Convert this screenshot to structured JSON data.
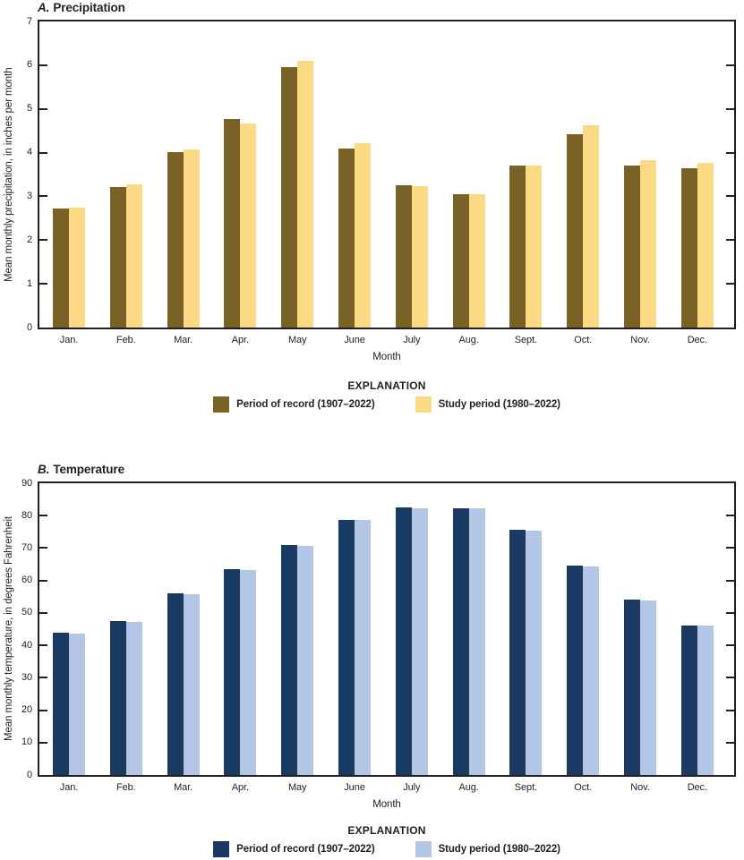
{
  "page": {
    "background": "#ffffff",
    "text_color": "#231f20"
  },
  "chart_data": [
    {
      "type": "bar",
      "panel_letter": "A.",
      "panel_title": "Precipitation",
      "title": "A. Precipitation",
      "categories": [
        "Jan.",
        "Feb.",
        "Mar.",
        "Apr.",
        "May",
        "June",
        "July",
        "Aug.",
        "Sept.",
        "Oct.",
        "Nov.",
        "Dec."
      ],
      "series": [
        {
          "name": "Period of record (1907–2022)",
          "color": "#7a6227",
          "values": [
            2.72,
            3.22,
            4.02,
            4.76,
            5.96,
            4.1,
            3.26,
            3.06,
            3.71,
            4.42,
            3.7,
            3.64
          ]
        },
        {
          "name": "Study period (1980–2022)",
          "color": "#fbd985",
          "values": [
            2.75,
            3.27,
            4.08,
            4.66,
            6.09,
            4.21,
            3.24,
            3.04,
            3.71,
            4.63,
            3.82,
            3.77
          ]
        }
      ],
      "xlabel": "Month",
      "ylabel": "Mean monthly precipitation, in inches per month",
      "ylim": [
        0,
        7
      ],
      "ytick_step": 1,
      "grid": false,
      "legend_heading": "EXPLANATION",
      "legend_position": "bottom-center"
    },
    {
      "type": "bar",
      "panel_letter": "B.",
      "panel_title": "Temperature",
      "title": "B. Temperature",
      "categories": [
        "Jan.",
        "Feb.",
        "Mar.",
        "Apr.",
        "May",
        "June",
        "July",
        "Aug.",
        "Sept.",
        "Oct.",
        "Nov.",
        "Dec."
      ],
      "series": [
        {
          "name": "Period of record (1907–2022)",
          "color": "#1b3a63",
          "values": [
            43.9,
            47.5,
            56.0,
            63.4,
            70.9,
            78.8,
            82.5,
            82.3,
            75.6,
            64.5,
            54.0,
            46.2
          ]
        },
        {
          "name": "Study period (1980–2022)",
          "color": "#b4c6e6",
          "values": [
            43.7,
            47.2,
            55.9,
            63.2,
            70.7,
            78.7,
            82.4,
            82.2,
            75.4,
            64.2,
            53.8,
            46.0
          ]
        }
      ],
      "xlabel": "Month",
      "ylabel": "Mean monthly temperature, in degrees Fahrenheit",
      "ylim": [
        0,
        90
      ],
      "ytick_step": 10,
      "grid": false,
      "legend_heading": "EXPLANATION",
      "legend_position": "bottom-center"
    }
  ]
}
